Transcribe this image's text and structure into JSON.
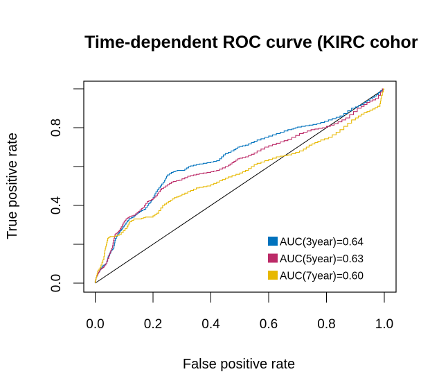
{
  "chart_data": {
    "type": "line",
    "title": "Time-dependent ROC curve (KIRC cohor",
    "xlabel": "False positive rate",
    "ylabel": "True positive rate",
    "xlim": [
      0,
      1
    ],
    "ylim": [
      0,
      1
    ],
    "x_ticks": [
      0.0,
      0.2,
      0.4,
      0.6,
      0.8,
      1.0
    ],
    "x_tick_labels": [
      "0.0",
      "0.2",
      "0.4",
      "0.6",
      "0.8",
      "1.0"
    ],
    "y_ticks": [
      0.0,
      0.2,
      0.4,
      0.6,
      0.8,
      1.0
    ],
    "y_tick_labels": [
      "0.0",
      "",
      "0.4",
      "",
      "0.8",
      ""
    ],
    "grid": false,
    "legend_position": "bottom-right",
    "reference_line": {
      "from": [
        0,
        0
      ],
      "to": [
        1,
        1
      ],
      "color": "#000000"
    },
    "series": [
      {
        "name": "AUC(3year)=0.64",
        "color": "#0072BD",
        "points": [
          [
            0,
            0
          ],
          [
            0.005,
            0.03
          ],
          [
            0.012,
            0.05
          ],
          [
            0.02,
            0.07
          ],
          [
            0.03,
            0.09
          ],
          [
            0.04,
            0.1
          ],
          [
            0.045,
            0.13
          ],
          [
            0.055,
            0.16
          ],
          [
            0.065,
            0.18
          ],
          [
            0.07,
            0.22
          ],
          [
            0.08,
            0.25
          ],
          [
            0.09,
            0.27
          ],
          [
            0.1,
            0.29
          ],
          [
            0.11,
            0.31
          ],
          [
            0.12,
            0.33
          ],
          [
            0.135,
            0.34
          ],
          [
            0.15,
            0.36
          ],
          [
            0.16,
            0.37
          ],
          [
            0.175,
            0.38
          ],
          [
            0.19,
            0.41
          ],
          [
            0.2,
            0.43
          ],
          [
            0.21,
            0.46
          ],
          [
            0.225,
            0.49
          ],
          [
            0.24,
            0.52
          ],
          [
            0.25,
            0.55
          ],
          [
            0.27,
            0.57
          ],
          [
            0.29,
            0.58
          ],
          [
            0.31,
            0.58
          ],
          [
            0.33,
            0.6
          ],
          [
            0.36,
            0.61
          ],
          [
            0.4,
            0.62
          ],
          [
            0.43,
            0.63
          ],
          [
            0.45,
            0.66
          ],
          [
            0.48,
            0.68
          ],
          [
            0.5,
            0.7
          ],
          [
            0.53,
            0.71
          ],
          [
            0.56,
            0.73
          ],
          [
            0.6,
            0.75
          ],
          [
            0.64,
            0.77
          ],
          [
            0.68,
            0.79
          ],
          [
            0.7,
            0.8
          ],
          [
            0.74,
            0.81
          ],
          [
            0.78,
            0.82
          ],
          [
            0.82,
            0.84
          ],
          [
            0.86,
            0.86
          ],
          [
            0.9,
            0.9
          ],
          [
            0.93,
            0.92
          ],
          [
            0.96,
            0.95
          ],
          [
            0.98,
            0.97
          ],
          [
            1,
            1
          ]
        ]
      },
      {
        "name": "AUC(5year)=0.63",
        "color": "#BC2B68",
        "points": [
          [
            0,
            0
          ],
          [
            0.005,
            0.03
          ],
          [
            0.012,
            0.05
          ],
          [
            0.02,
            0.07
          ],
          [
            0.03,
            0.08
          ],
          [
            0.04,
            0.1
          ],
          [
            0.05,
            0.14
          ],
          [
            0.06,
            0.18
          ],
          [
            0.065,
            0.22
          ],
          [
            0.07,
            0.25
          ],
          [
            0.08,
            0.26
          ],
          [
            0.09,
            0.28
          ],
          [
            0.1,
            0.31
          ],
          [
            0.11,
            0.33
          ],
          [
            0.12,
            0.34
          ],
          [
            0.14,
            0.35
          ],
          [
            0.155,
            0.37
          ],
          [
            0.17,
            0.39
          ],
          [
            0.185,
            0.42
          ],
          [
            0.2,
            0.43
          ],
          [
            0.215,
            0.45
          ],
          [
            0.23,
            0.48
          ],
          [
            0.25,
            0.5
          ],
          [
            0.27,
            0.52
          ],
          [
            0.3,
            0.53
          ],
          [
            0.33,
            0.55
          ],
          [
            0.36,
            0.56
          ],
          [
            0.4,
            0.57
          ],
          [
            0.43,
            0.58
          ],
          [
            0.46,
            0.6
          ],
          [
            0.48,
            0.62
          ],
          [
            0.5,
            0.64
          ],
          [
            0.53,
            0.65
          ],
          [
            0.56,
            0.67
          ],
          [
            0.6,
            0.7
          ],
          [
            0.64,
            0.72
          ],
          [
            0.68,
            0.74
          ],
          [
            0.72,
            0.77
          ],
          [
            0.76,
            0.79
          ],
          [
            0.8,
            0.8
          ],
          [
            0.84,
            0.82
          ],
          [
            0.88,
            0.85
          ],
          [
            0.92,
            0.9
          ],
          [
            0.95,
            0.93
          ],
          [
            0.98,
            0.95
          ],
          [
            1,
            1
          ]
        ]
      },
      {
        "name": "AUC(7year)=0.60",
        "color": "#E7B800",
        "points": [
          [
            0,
            0
          ],
          [
            0.005,
            0.03
          ],
          [
            0.01,
            0.06
          ],
          [
            0.02,
            0.08
          ],
          [
            0.03,
            0.12
          ],
          [
            0.035,
            0.17
          ],
          [
            0.04,
            0.2
          ],
          [
            0.045,
            0.23
          ],
          [
            0.055,
            0.24
          ],
          [
            0.07,
            0.24
          ],
          [
            0.09,
            0.25
          ],
          [
            0.11,
            0.28
          ],
          [
            0.12,
            0.31
          ],
          [
            0.14,
            0.33
          ],
          [
            0.16,
            0.33
          ],
          [
            0.18,
            0.34
          ],
          [
            0.2,
            0.34
          ],
          [
            0.22,
            0.36
          ],
          [
            0.24,
            0.4
          ],
          [
            0.26,
            0.42
          ],
          [
            0.28,
            0.44
          ],
          [
            0.3,
            0.45
          ],
          [
            0.33,
            0.47
          ],
          [
            0.36,
            0.49
          ],
          [
            0.4,
            0.5
          ],
          [
            0.43,
            0.52
          ],
          [
            0.46,
            0.54
          ],
          [
            0.5,
            0.56
          ],
          [
            0.53,
            0.58
          ],
          [
            0.56,
            0.61
          ],
          [
            0.6,
            0.63
          ],
          [
            0.64,
            0.65
          ],
          [
            0.68,
            0.66
          ],
          [
            0.72,
            0.68
          ],
          [
            0.75,
            0.71
          ],
          [
            0.78,
            0.73
          ],
          [
            0.82,
            0.75
          ],
          [
            0.86,
            0.79
          ],
          [
            0.9,
            0.84
          ],
          [
            0.93,
            0.87
          ],
          [
            0.96,
            0.89
          ],
          [
            0.985,
            0.91
          ],
          [
            0.99,
            0.95
          ],
          [
            1,
            1
          ]
        ]
      }
    ]
  }
}
